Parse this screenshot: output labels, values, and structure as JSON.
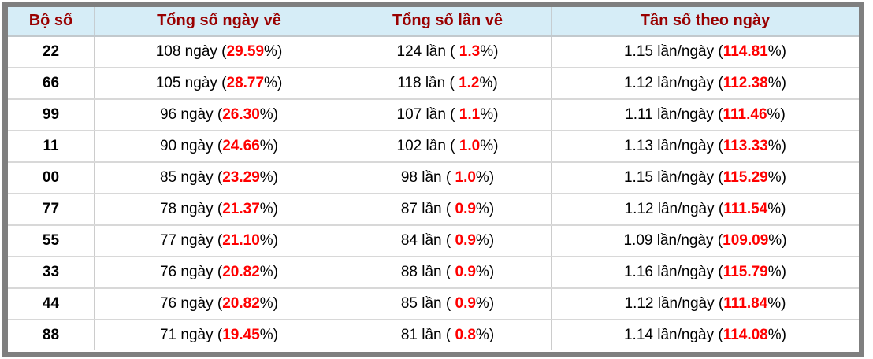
{
  "colors": {
    "header_bg": "#d6edf7",
    "header_text": "#990000",
    "highlight_red": "#ff0000",
    "body_text": "#000000",
    "frame_border": "#7f7f7f",
    "grid_line": "#cccccc"
  },
  "table": {
    "headers": [
      "Bộ số",
      "Tổng số ngày về",
      "Tổng số lần về",
      "Tần số theo ngày"
    ],
    "rows": [
      {
        "pair": "22",
        "days_text": "108 ngày (",
        "days_pct": "29.59",
        "days_close": "%)",
        "times_text": "124 lần ( ",
        "times_pct": "1.3",
        "times_close": "%)",
        "freq_text": "1.15 lần/ngày (",
        "freq_pct": "114.81",
        "freq_close": "%)"
      },
      {
        "pair": "66",
        "days_text": "105 ngày (",
        "days_pct": "28.77",
        "days_close": "%)",
        "times_text": "118 lần ( ",
        "times_pct": "1.2",
        "times_close": "%)",
        "freq_text": "1.12 lần/ngày (",
        "freq_pct": "112.38",
        "freq_close": "%)"
      },
      {
        "pair": "99",
        "days_text": "96 ngày (",
        "days_pct": "26.30",
        "days_close": "%)",
        "times_text": "107 lần ( ",
        "times_pct": "1.1",
        "times_close": "%)",
        "freq_text": "1.11 lần/ngày (",
        "freq_pct": "111.46",
        "freq_close": "%)"
      },
      {
        "pair": "11",
        "days_text": "90 ngày (",
        "days_pct": "24.66",
        "days_close": "%)",
        "times_text": "102 lần ( ",
        "times_pct": "1.0",
        "times_close": "%)",
        "freq_text": "1.13 lần/ngày (",
        "freq_pct": "113.33",
        "freq_close": "%)"
      },
      {
        "pair": "00",
        "days_text": "85 ngày (",
        "days_pct": "23.29",
        "days_close": "%)",
        "times_text": "98 lần ( ",
        "times_pct": "1.0",
        "times_close": "%)",
        "freq_text": "1.15 lần/ngày (",
        "freq_pct": "115.29",
        "freq_close": "%)"
      },
      {
        "pair": "77",
        "days_text": "78 ngày (",
        "days_pct": "21.37",
        "days_close": "%)",
        "times_text": "87 lần ( ",
        "times_pct": "0.9",
        "times_close": "%)",
        "freq_text": "1.12 lần/ngày (",
        "freq_pct": "111.54",
        "freq_close": "%)"
      },
      {
        "pair": "55",
        "days_text": "77 ngày (",
        "days_pct": "21.10",
        "days_close": "%)",
        "times_text": "84 lần ( ",
        "times_pct": "0.9",
        "times_close": "%)",
        "freq_text": "1.09 lần/ngày (",
        "freq_pct": "109.09",
        "freq_close": "%)"
      },
      {
        "pair": "33",
        "days_text": "76 ngày (",
        "days_pct": "20.82",
        "days_close": "%)",
        "times_text": "88 lần ( ",
        "times_pct": "0.9",
        "times_close": "%)",
        "freq_text": "1.16 lần/ngày (",
        "freq_pct": "115.79",
        "freq_close": "%)"
      },
      {
        "pair": "44",
        "days_text": "76 ngày (",
        "days_pct": "20.82",
        "days_close": "%)",
        "times_text": "85 lần ( ",
        "times_pct": "0.9",
        "times_close": "%)",
        "freq_text": "1.12 lần/ngày (",
        "freq_pct": "111.84",
        "freq_close": "%)"
      },
      {
        "pair": "88",
        "days_text": "71 ngày (",
        "days_pct": "19.45",
        "days_close": "%)",
        "times_text": "81 lần ( ",
        "times_pct": "0.8",
        "times_close": "%)",
        "freq_text": "1.14 lần/ngày (",
        "freq_pct": "114.08",
        "freq_close": "%)"
      }
    ]
  }
}
